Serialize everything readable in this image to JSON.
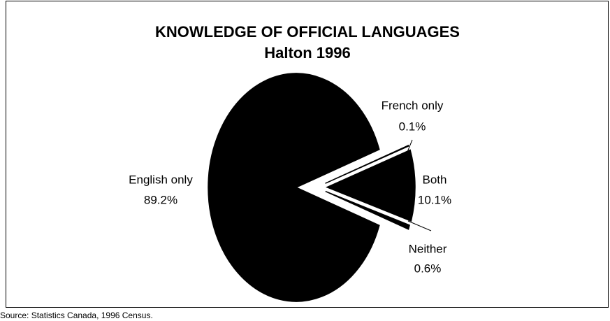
{
  "chart_data": {
    "type": "pie",
    "title": "KNOWLEDGE OF OFFICIAL LANGUAGES",
    "subtitle": "Halton 1996",
    "categories": [
      "French only",
      "Both",
      "Neither",
      "English only"
    ],
    "values": [
      0.1,
      10.1,
      0.6,
      89.2
    ],
    "value_labels": [
      "0.1%",
      "10.1%",
      "0.6%",
      "89.2%"
    ],
    "color": "#000000",
    "source": "Source: Statistics Canada, 1996 Census."
  }
}
